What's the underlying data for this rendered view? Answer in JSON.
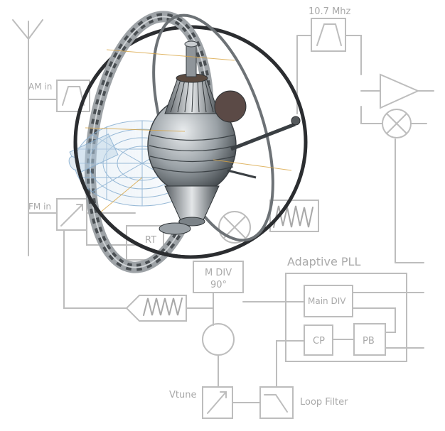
{
  "labels": {
    "if_freq": "10.7 Mhz",
    "am_in": "AM in",
    "fm_in": "FM in",
    "adaptive_pll": "Adaptive PLL",
    "div_label": "M DIV",
    "phase": "90°",
    "main_div": "Main DIV",
    "cp": "CP",
    "pb": "PB",
    "vtune": "Vtune",
    "loop_filter": "Loop Filter",
    "partial_label": "RT"
  },
  "colors": {
    "sketch_line": "#b9b9b9",
    "sketch_text": "#a9a9a9",
    "satellite_metal": "#8f959a",
    "wireframe": "#7fa7c8",
    "ring_dark": "#2b2d30",
    "gold_accent": "#d9a441"
  },
  "icons": {
    "antenna": "antenna-icon",
    "mixer": "mixer-icon",
    "amplifier": "amplifier-icon",
    "vco": "vco-circle-icon"
  }
}
